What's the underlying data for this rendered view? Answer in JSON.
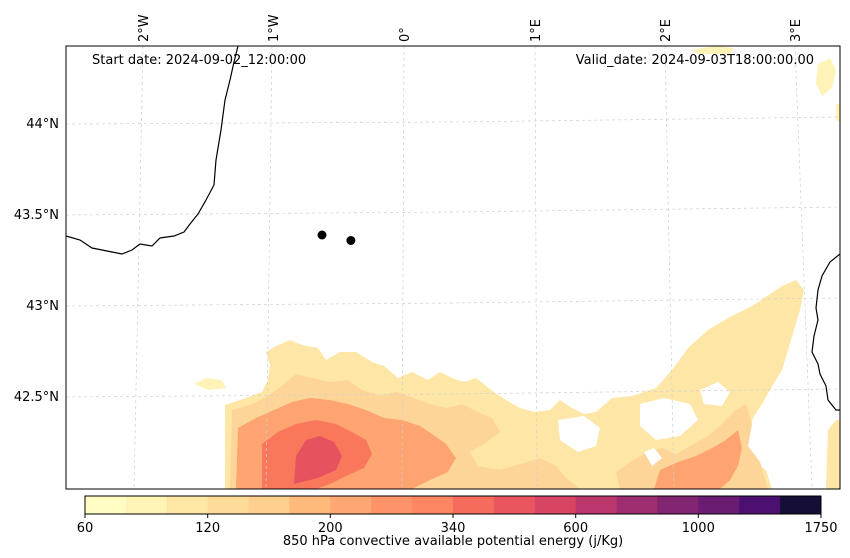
{
  "map": {
    "start_date": "Start date: 2024-09-02_12:00:00",
    "valid_date": "Valid_date: 2024-09-03T18:00:00.00",
    "lon_labels": [
      "2°W",
      "1°W",
      "0°",
      "1°E",
      "2°E",
      "3°E"
    ],
    "lat_labels": [
      "44°N",
      "43.5°N",
      "43°N",
      "42.5°N"
    ],
    "points": [
      {
        "name": "point-1",
        "lon": -0.62,
        "lat": 43.39
      },
      {
        "name": "point-2",
        "lon": -0.4,
        "lat": 43.36
      }
    ]
  },
  "colorbar": {
    "label": "850 hPa convective available potential energy (j/Kg)",
    "tick_labels": [
      "60",
      "120",
      "200",
      "340",
      "600",
      "1000",
      "1750"
    ],
    "colors": [
      "#fffcc4",
      "#fff3b5",
      "#fee6a4",
      "#fedb98",
      "#fecf8d",
      "#feba7b",
      "#fea773",
      "#fe9369",
      "#fc8661",
      "#f56b5c",
      "#ea5660",
      "#d74464",
      "#bb376b",
      "#9e2e6f",
      "#832672",
      "#6a1c72",
      "#4b1070",
      "#150e37"
    ]
  }
}
